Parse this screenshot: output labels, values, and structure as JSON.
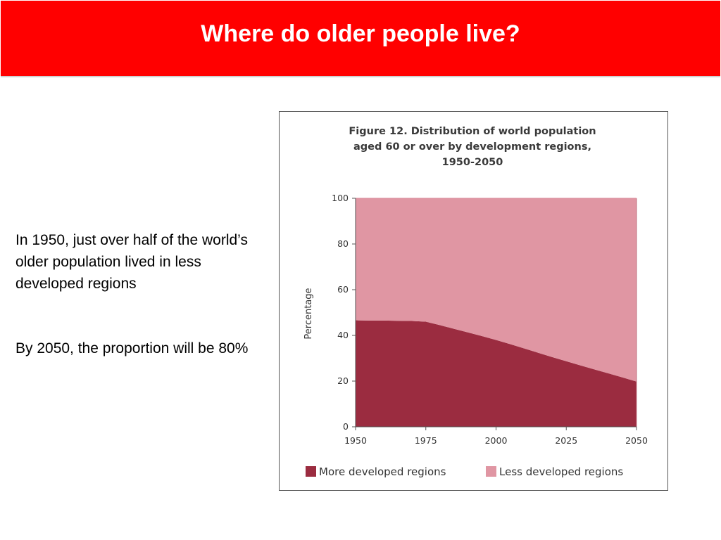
{
  "slide": {
    "title": "Where do older people live?",
    "paragraph_1": "In 1950, just over half of the world’s older population lived in less developed regions",
    "paragraph_2": "By 2050, the proportion will be 80%",
    "accent_color": "#ff0000"
  },
  "chart_data": {
    "type": "area",
    "title_lines": [
      "Figure 12.  Distribution of world population",
      "aged 60 or over by development regions,",
      "1950-2050"
    ],
    "ylabel": "Percentage",
    "xlabel": "",
    "x_ticks": [
      "1950",
      "1975",
      "2000",
      "2025",
      "2050"
    ],
    "y_ticks": [
      "0",
      "20",
      "40",
      "60",
      "80",
      "100"
    ],
    "xlim": [
      1950,
      2050
    ],
    "ylim": [
      0,
      100
    ],
    "stacked": true,
    "x": [
      1950,
      1955,
      1960,
      1965,
      1970,
      1975,
      1980,
      1985,
      1990,
      1995,
      2000,
      2005,
      2010,
      2015,
      2020,
      2025,
      2030,
      2035,
      2040,
      2045,
      2050
    ],
    "series": [
      {
        "name": "More developed regions",
        "color": "#9b2c40",
        "values": [
          46.6,
          46.5,
          46.5,
          46.4,
          46.3,
          46.0,
          44.5,
          42.9,
          41.3,
          39.7,
          38.0,
          36.2,
          34.3,
          32.4,
          30.5,
          28.7,
          26.9,
          25.1,
          23.4,
          21.6,
          19.8
        ]
      },
      {
        "name": "Less developed regions",
        "color": "#e096a3",
        "values": [
          53.4,
          53.5,
          53.5,
          53.6,
          53.7,
          54.0,
          55.5,
          57.1,
          58.7,
          60.3,
          62.0,
          63.8,
          65.7,
          67.6,
          69.5,
          71.3,
          73.1,
          74.9,
          76.6,
          78.4,
          80.2
        ]
      }
    ],
    "grid": false,
    "legend_position": "bottom"
  }
}
